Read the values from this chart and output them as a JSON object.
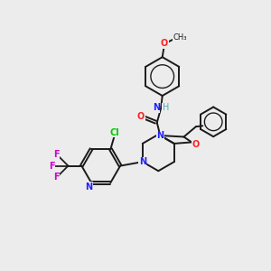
{
  "bg_color": "#ececec",
  "bond_color": "#1a1a1a",
  "atom_colors": {
    "N": "#2020ff",
    "O": "#ff2020",
    "F": "#cc00cc",
    "Cl": "#00cc00",
    "H": "#4aafaf",
    "C": "#1a1a1a"
  },
  "lw": 1.4,
  "fs": 7.0
}
